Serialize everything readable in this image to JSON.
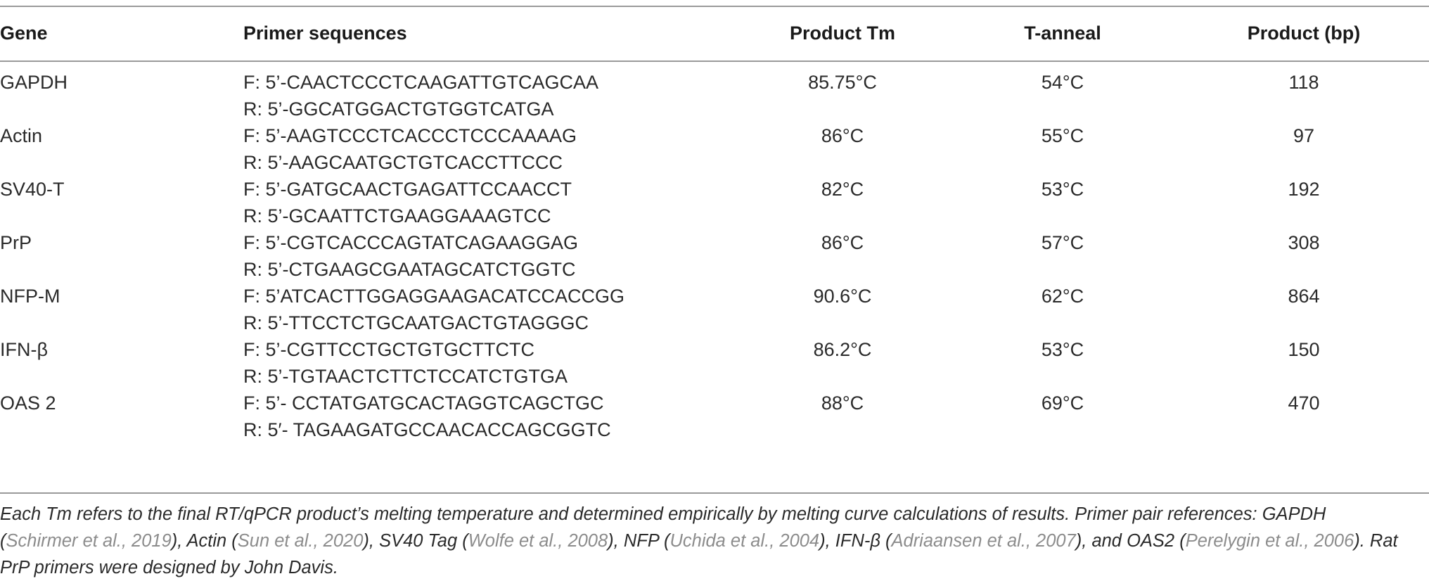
{
  "table": {
    "headers": {
      "gene": "Gene",
      "primer": "Primer sequences",
      "tm": "Product Tm",
      "anneal": "T-anneal",
      "bp": "Product (bp)"
    },
    "rows": [
      {
        "gene": "GAPDH",
        "forward": "F: 5’-CAACTCCCTCAAGATTGTCAGCAA",
        "reverse": "R: 5’-GGCATGGACTGTGGTCATGA",
        "tm": "85.75°C",
        "anneal": "54°C",
        "bp": "118"
      },
      {
        "gene": "Actin",
        "forward": "F: 5’-AAGTCCCTCACCCTCCCAAAAG",
        "reverse": "R: 5’-AAGCAATGCTGTCACCTTCCC",
        "tm": "86°C",
        "anneal": "55°C",
        "bp": "97"
      },
      {
        "gene": "SV40-T",
        "forward": "F: 5’-GATGCAACTGAGATTCCAACCT",
        "reverse": "R: 5’-GCAATTCTGAAGGAAAGTCC",
        "tm": "82°C",
        "anneal": "53°C",
        "bp": "192"
      },
      {
        "gene": "PrP",
        "forward": "F: 5’-CGTCACCCAGTATCAGAAGGAG",
        "reverse": "R: 5’-CTGAAGCGAATAGCATCTGGTC",
        "tm": "86°C",
        "anneal": "57°C",
        "bp": "308"
      },
      {
        "gene": "NFP-M",
        "forward": "F: 5’ATCACTTGGAGGAAGACATCCACCGG",
        "reverse": "R: 5’-TTCCTCTGCAATGACTGTAGGGC",
        "tm": "90.6°C",
        "anneal": "62°C",
        "bp": "864"
      },
      {
        "gene": "IFN-β",
        "forward": "F: 5’-CGTTCCTGCTGTGCTTCTC",
        "reverse": "R: 5’-TGTAACTCTTCTCCATCTGTGA",
        "tm": "86.2°C",
        "anneal": "53°C",
        "bp": "150"
      },
      {
        "gene": "OAS 2",
        "forward": "F: 5’- CCTATGATGCACTAGGTCAGCTGC",
        "reverse": "R: 5′- TAGAAGATGCCAACACCAGCGGTC",
        "tm": "88°C",
        "anneal": "69°C",
        "bp": "470"
      }
    ]
  },
  "footnote": {
    "t1": "Each Tm refers to the final RT/qPCR product’s melting temperature and determined empirically by melting curve calculations of results. Primer pair references: GAPDH (",
    "r1": "Schirmer et al., 2019",
    "t2": "), Actin (",
    "r2": "Sun et al., 2020",
    "t3": "), SV40 Tag (",
    "r3": "Wolfe et al., 2008",
    "t4": "), NFP (",
    "r4": "Uchida et al., 2004",
    "t5": "), IFN-β (",
    "r5": "Adriaansen et al., 2007",
    "t6": "), and OAS2 (",
    "r6": "Perelygin et al., 2006",
    "t7": "). Rat PrP primers were designed by John Davis."
  }
}
